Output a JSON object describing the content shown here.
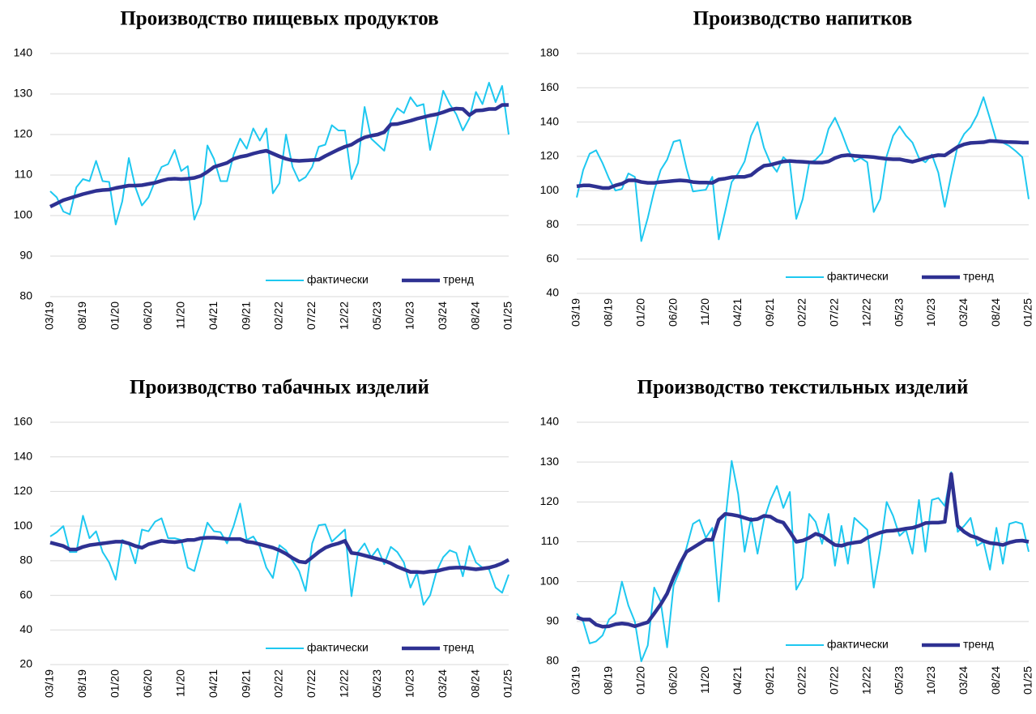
{
  "chart_data": [
    {
      "type": "line",
      "title": "Производство пищевых продуктов",
      "categories": [
        "03/19",
        null,
        null,
        null,
        null,
        "08/19",
        null,
        null,
        null,
        null,
        "01/20",
        null,
        null,
        null,
        null,
        "06/20",
        null,
        null,
        null,
        null,
        "11/20",
        null,
        null,
        null,
        null,
        "04/21",
        null,
        null,
        null,
        null,
        "09/21",
        null,
        null,
        null,
        null,
        "02/22",
        null,
        null,
        null,
        null,
        "07/22",
        null,
        null,
        null,
        null,
        "12/22",
        null,
        null,
        null,
        null,
        "05/23",
        null,
        null,
        null,
        null,
        "10/23",
        null,
        null,
        null,
        null,
        "03/24",
        null,
        null,
        null,
        null,
        "08/24",
        null,
        null,
        null,
        null,
        "01/25"
      ],
      "ylim": [
        80,
        140
      ],
      "yticks": [
        80,
        90,
        100,
        110,
        120,
        130,
        140
      ],
      "grid": true,
      "series": [
        {
          "name": "фактически",
          "color": "#1ec8f0",
          "values": [
            106,
            104.5,
            101,
            100.3,
            107,
            109,
            108.5,
            113.5,
            108.5,
            108.3,
            97.8,
            103.5,
            114.2,
            107,
            102.5,
            104.5,
            108.5,
            112,
            112.7,
            116.2,
            111,
            112.2,
            99,
            103,
            117.3,
            114,
            108.5,
            108.5,
            115,
            119,
            116.5,
            121.5,
            118.5,
            121.5,
            105.5,
            108,
            120,
            112,
            108.5,
            109.5,
            112,
            117,
            117.5,
            122.3,
            121,
            121,
            109,
            113,
            126.8,
            119,
            117.5,
            116,
            123.5,
            126.5,
            125.3,
            129.2,
            127,
            127.5,
            116.2,
            123,
            130.8,
            127.5,
            125,
            121,
            124,
            130.5,
            127.5,
            132.8,
            128,
            132,
            120
          ]
        },
        {
          "name": "тренд",
          "color": "#2e3192",
          "values": [
            102.2,
            103,
            103.8,
            104.3,
            104.8,
            105.3,
            105.7,
            106.1,
            106.3,
            106.4,
            106.8,
            107.1,
            107.4,
            107.4,
            107.5,
            107.8,
            108.1,
            108.6,
            109,
            109.1,
            109,
            109.1,
            109.3,
            109.8,
            110.8,
            112,
            112.5,
            113,
            114,
            114.5,
            114.8,
            115.3,
            115.7,
            116,
            115.3,
            114.6,
            114,
            113.6,
            113.5,
            113.6,
            113.7,
            113.8,
            114.7,
            115.5,
            116.3,
            117,
            117.5,
            118.5,
            119.3,
            119.7,
            120,
            120.6,
            122.5,
            122.6,
            123,
            123.4,
            123.9,
            124.3,
            124.7,
            125,
            125.5,
            126.1,
            126.4,
            126.3,
            124.8,
            125.9,
            126,
            126.3,
            126.3,
            127.3,
            127.3
          ]
        }
      ]
    },
    {
      "type": "line",
      "title": "Производство напитков",
      "categories": [
        "03/19",
        null,
        null,
        null,
        null,
        "08/19",
        null,
        null,
        null,
        null,
        "01/20",
        null,
        null,
        null,
        null,
        "06/20",
        null,
        null,
        null,
        null,
        "11/20",
        null,
        null,
        null,
        null,
        "04/21",
        null,
        null,
        null,
        null,
        "09/21",
        null,
        null,
        null,
        null,
        "02/22",
        null,
        null,
        null,
        null,
        "07/22",
        null,
        null,
        null,
        null,
        "12/22",
        null,
        null,
        null,
        null,
        "05/23",
        null,
        null,
        null,
        null,
        "10/23",
        null,
        null,
        null,
        null,
        "03/24",
        null,
        null,
        null,
        null,
        "08/24",
        null,
        null,
        null,
        null,
        "01/25"
      ],
      "ylim": [
        40,
        180
      ],
      "yticks": [
        40,
        60,
        80,
        100,
        120,
        140,
        160,
        180
      ],
      "grid": true,
      "series": [
        {
          "name": "фактически",
          "color": "#1ec8f0",
          "values": [
            96,
            112,
            121.5,
            123.5,
            116,
            107,
            100,
            101,
            110,
            108,
            70.5,
            84,
            100,
            112,
            118,
            128.5,
            129.5,
            113,
            99.5,
            100,
            100.5,
            108,
            71.5,
            88,
            105,
            110,
            117,
            132,
            140,
            125,
            116,
            111,
            119.5,
            116,
            83.5,
            95,
            116,
            118,
            122,
            136,
            142.5,
            134,
            124,
            117,
            119,
            116.5,
            87.5,
            95,
            120,
            132,
            137.5,
            132,
            128,
            119,
            116.5,
            121,
            110.5,
            90.5,
            109,
            126,
            133,
            137,
            144,
            154.5,
            142,
            129,
            128,
            126,
            123,
            119.5,
            95
          ]
        },
        {
          "name": "тренд",
          "color": "#2e3192",
          "values": [
            102.5,
            103,
            103,
            102.3,
            101.5,
            101.5,
            103,
            104,
            106,
            106,
            105,
            104.5,
            104.5,
            105,
            105.3,
            105.7,
            106,
            105.7,
            105,
            104.7,
            104.7,
            104.5,
            106.5,
            107,
            107.8,
            108,
            108,
            109,
            112,
            114.5,
            115,
            116,
            117,
            117.3,
            117,
            116.8,
            116.5,
            116.3,
            116.3,
            117,
            119,
            120.3,
            120.7,
            120.3,
            120,
            119.8,
            119.5,
            119,
            118.5,
            118.3,
            118.3,
            117.5,
            116.8,
            117.8,
            119,
            120,
            120.7,
            120.5,
            123,
            125.5,
            127,
            127.8,
            128,
            128.2,
            129,
            128.8,
            128.5,
            128.3,
            128.2,
            128,
            128
          ]
        }
      ]
    },
    {
      "type": "line",
      "title": "Производство табачных изделий",
      "categories": [
        "03/19",
        null,
        null,
        null,
        null,
        "08/19",
        null,
        null,
        null,
        null,
        "01/20",
        null,
        null,
        null,
        null,
        "06/20",
        null,
        null,
        null,
        null,
        "11/20",
        null,
        null,
        null,
        null,
        "04/21",
        null,
        null,
        null,
        null,
        "09/21",
        null,
        null,
        null,
        null,
        "02/22",
        null,
        null,
        null,
        null,
        "07/22",
        null,
        null,
        null,
        null,
        "12/22",
        null,
        null,
        null,
        null,
        "05/23",
        null,
        null,
        null,
        null,
        "10/23",
        null,
        null,
        null,
        null,
        "03/24",
        null,
        null,
        null,
        null,
        "08/24",
        null,
        null,
        null,
        null,
        "01/25"
      ],
      "ylim": [
        20,
        160
      ],
      "yticks": [
        20,
        40,
        60,
        80,
        100,
        120,
        140,
        160
      ],
      "grid": true,
      "series": [
        {
          "name": "фактически",
          "color": "#1ec8f0",
          "values": [
            94,
            96.5,
            100,
            85,
            85,
            106,
            93,
            97,
            85,
            79,
            69,
            92,
            90,
            78.5,
            98,
            97,
            102.5,
            104.5,
            93,
            93,
            92,
            76,
            74,
            88,
            102,
            97,
            96.5,
            90,
            100,
            113,
            92,
            94,
            88,
            76,
            70,
            89,
            86,
            80,
            74,
            62.5,
            90,
            100.5,
            101,
            91,
            94.5,
            98,
            59.5,
            85,
            90,
            82,
            87,
            78,
            88,
            85,
            79,
            64.5,
            73,
            54.5,
            60,
            74,
            82,
            86,
            84.5,
            71,
            88.5,
            79,
            76,
            75,
            64.5,
            61.5,
            72
          ]
        },
        {
          "name": "тренд",
          "color": "#2e3192",
          "values": [
            90.5,
            89.5,
            88.5,
            86.5,
            86.5,
            88,
            89,
            89.5,
            90,
            90.5,
            91,
            91,
            90,
            88.5,
            87.5,
            89.5,
            90.5,
            91.5,
            91,
            90.7,
            91.2,
            92,
            92,
            93,
            93.3,
            93.3,
            93,
            92.5,
            92.5,
            92.5,
            91,
            90.5,
            89.5,
            88.5,
            87.5,
            86,
            84,
            81.5,
            79.5,
            79,
            82,
            85,
            87.5,
            89,
            90,
            91.5,
            84.5,
            84,
            83,
            82,
            81,
            80,
            78.5,
            76.5,
            75,
            73.5,
            73.5,
            73.2,
            73.8,
            74,
            75,
            75.8,
            76,
            76,
            75.5,
            75,
            75.5,
            76,
            77,
            78.5,
            80.5
          ]
        }
      ]
    },
    {
      "type": "line",
      "title": "Производство текстильных изделий",
      "categories": [
        "03/19",
        null,
        null,
        null,
        null,
        "08/19",
        null,
        null,
        null,
        null,
        "01/20",
        null,
        null,
        null,
        null,
        "06/20",
        null,
        null,
        null,
        null,
        "11/20",
        null,
        null,
        null,
        null,
        "04/21",
        null,
        null,
        null,
        null,
        "09/21",
        null,
        null,
        null,
        null,
        "02/22",
        null,
        null,
        null,
        null,
        "07/22",
        null,
        null,
        null,
        null,
        "12/22",
        null,
        null,
        null,
        null,
        "05/23",
        null,
        null,
        null,
        null,
        "10/23",
        null,
        null,
        null,
        null,
        "03/24",
        null,
        null,
        null,
        null,
        "08/24",
        null,
        null,
        null,
        null,
        "01/25"
      ],
      "ylim": [
        80,
        140
      ],
      "yticks": [
        80,
        90,
        100,
        110,
        120,
        130,
        140
      ],
      "grid": true,
      "series": [
        {
          "name": "фактически",
          "color": "#1ec8f0",
          "values": [
            92,
            90,
            84.5,
            85,
            86.5,
            90.5,
            92,
            100,
            94,
            90,
            80,
            84,
            98.5,
            95,
            83.5,
            99,
            103,
            108.5,
            114.5,
            115.5,
            111,
            113.5,
            95,
            115,
            130.3,
            122,
            107.5,
            116,
            107,
            115.5,
            120.5,
            124,
            118.5,
            122.5,
            98,
            101,
            117,
            115,
            109.5,
            117,
            104,
            114,
            104.5,
            116,
            114.5,
            113,
            98.5,
            108,
            120,
            116.5,
            111.5,
            113,
            107,
            120.5,
            107.5,
            120.5,
            121,
            119,
            127.5,
            112.5,
            114,
            116,
            109,
            110,
            103,
            113.5,
            104.5,
            114.5,
            115,
            114.5,
            107.5
          ]
        },
        {
          "name": "тренд",
          "color": "#2e3192",
          "values": [
            91,
            90.5,
            90.5,
            89.2,
            88.7,
            88.8,
            89.3,
            89.5,
            89.3,
            88.8,
            89.3,
            89.8,
            92,
            94.3,
            97,
            101,
            104.5,
            107.5,
            108.5,
            109.5,
            110.5,
            110.5,
            115.5,
            117,
            116.8,
            116.5,
            116,
            115.5,
            115.7,
            116.5,
            116.3,
            115.3,
            114.8,
            112.5,
            110,
            110.3,
            111,
            112,
            111.5,
            110.3,
            109.2,
            109,
            109.5,
            109.8,
            110,
            111,
            111.7,
            112.3,
            112.7,
            112.8,
            113,
            113.3,
            113.5,
            114,
            114.7,
            114.8,
            114.8,
            115,
            127,
            114,
            112.5,
            111.5,
            111,
            110.2,
            109.7,
            109.5,
            109.2,
            109.8,
            110.2,
            110.3,
            110
          ]
        }
      ]
    }
  ]
}
